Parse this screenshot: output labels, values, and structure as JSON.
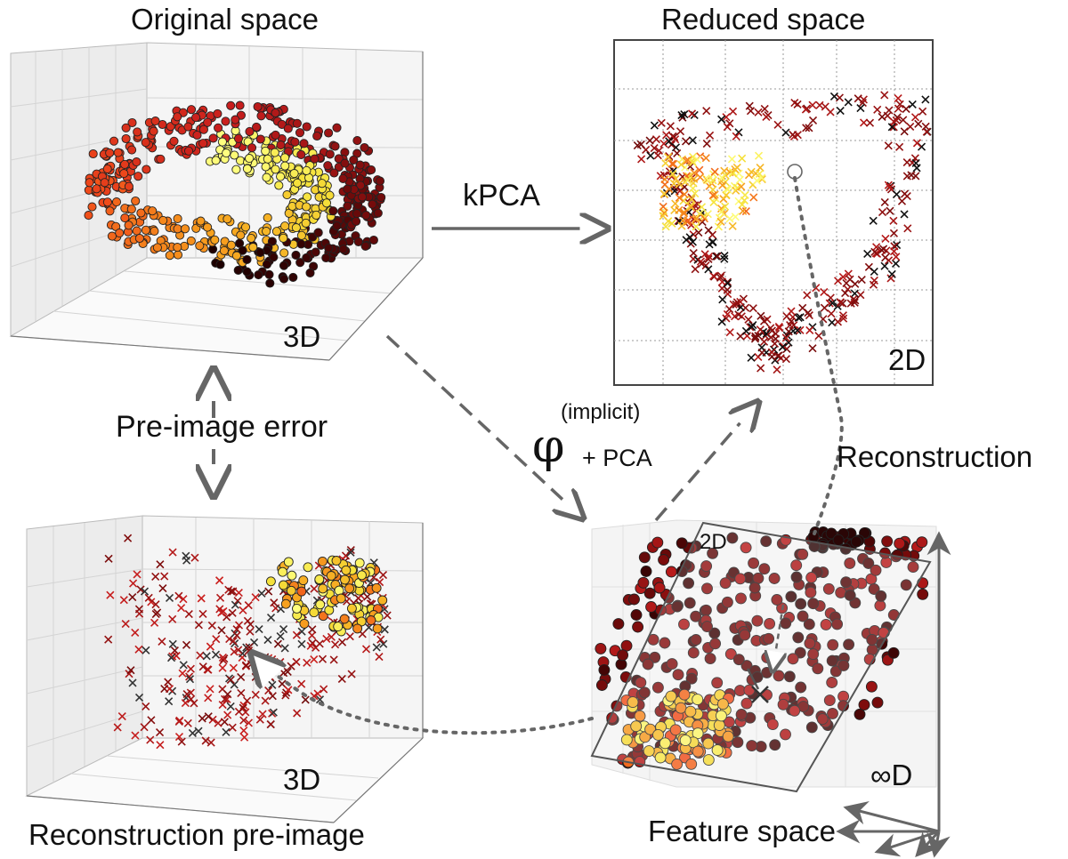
{
  "panels": {
    "original": {
      "title": "Original space",
      "dimension": "3D"
    },
    "reduced": {
      "title": "Reduced space",
      "dimension": "2D"
    },
    "reconstruction": {
      "title": "Reconstruction pre-image",
      "dimension": "3D"
    },
    "feature": {
      "title": "Feature space",
      "plane_label": "2D",
      "dimension": "∞D"
    }
  },
  "arrows": {
    "kpca": "kPCA",
    "pre_image_error": "Pre-image error",
    "phi_symbol": "φ",
    "phi_superscript": "(implicit)",
    "phi_suffix": "+ PCA",
    "reconstruction": "Reconstruction"
  },
  "colors": {
    "arrow": "#666666",
    "axis_gray": "#888888",
    "grid": "#d8d8d8",
    "pane": "#efefef",
    "colormap": [
      "#1a0000",
      "#7a0c0c",
      "#c81e1e",
      "#f04a1a",
      "#f7a21e",
      "#f5e13a",
      "#ffff80"
    ]
  }
}
